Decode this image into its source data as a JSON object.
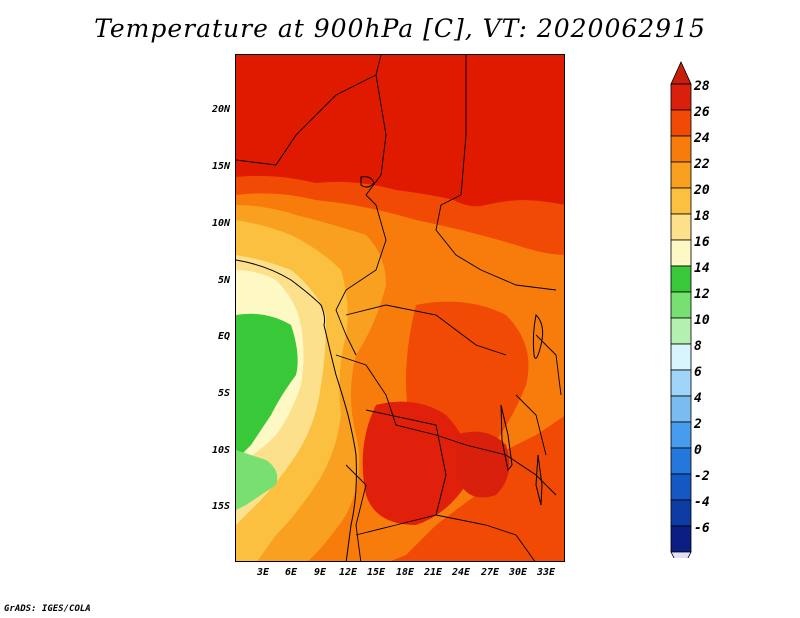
{
  "title": "Temperature at 900hPa [C], VT: 2020062915",
  "footer": "GrADS: IGES/COLA",
  "lat_labels": [
    "20N",
    "15N",
    "10N",
    "5N",
    "EQ",
    "5S",
    "10S",
    "15S"
  ],
  "lon_labels": [
    "3E",
    "6E",
    "9E",
    "12E",
    "15E",
    "18E",
    "21E",
    "24E",
    "27E",
    "30E",
    "33E"
  ],
  "colorbar": {
    "labels": [
      "28",
      "26",
      "24",
      "22",
      "20",
      "18",
      "16",
      "14",
      "12",
      "10",
      "8",
      "6",
      "4",
      "2",
      "0",
      "-2",
      "-4",
      "-6"
    ],
    "colors_top_to_bottom": [
      "#d8200c",
      "#f04a04",
      "#f77c0c",
      "#f9a020",
      "#fbc040",
      "#fde08c",
      "#fdf8c4",
      "#38c838",
      "#78e070",
      "#b4f0b0",
      "#d8f4fc",
      "#a0d4f8",
      "#78bcf0",
      "#489cf0",
      "#2478dc",
      "#1458c4",
      "#0c3ca4",
      "#0a1e84"
    ],
    "over_color": "#c81e0c",
    "under_color": "#e0e0f8"
  },
  "icons": {
    "map": "temperature-field-map"
  }
}
